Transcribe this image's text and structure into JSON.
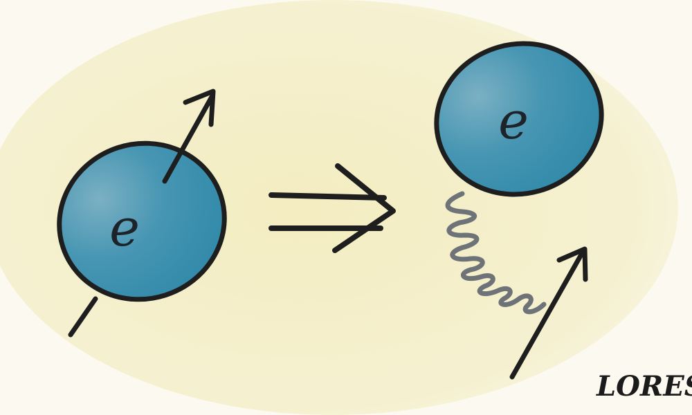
{
  "electron_left": {
    "label": "e"
  },
  "electron_right": {
    "label": "e"
  },
  "signature": {
    "text": "LORES"
  },
  "colors": {
    "background": "#f5f0c8",
    "electron_fill": "#3f93b1",
    "outline": "#1e1e1e",
    "spring": "#6e7378",
    "arrow": "#1e1e1e"
  },
  "icons": {
    "spin_arrow": "arrow-up-right-icon",
    "implies": "double-arrow-right-icon",
    "spring": "spring-coil-icon"
  }
}
